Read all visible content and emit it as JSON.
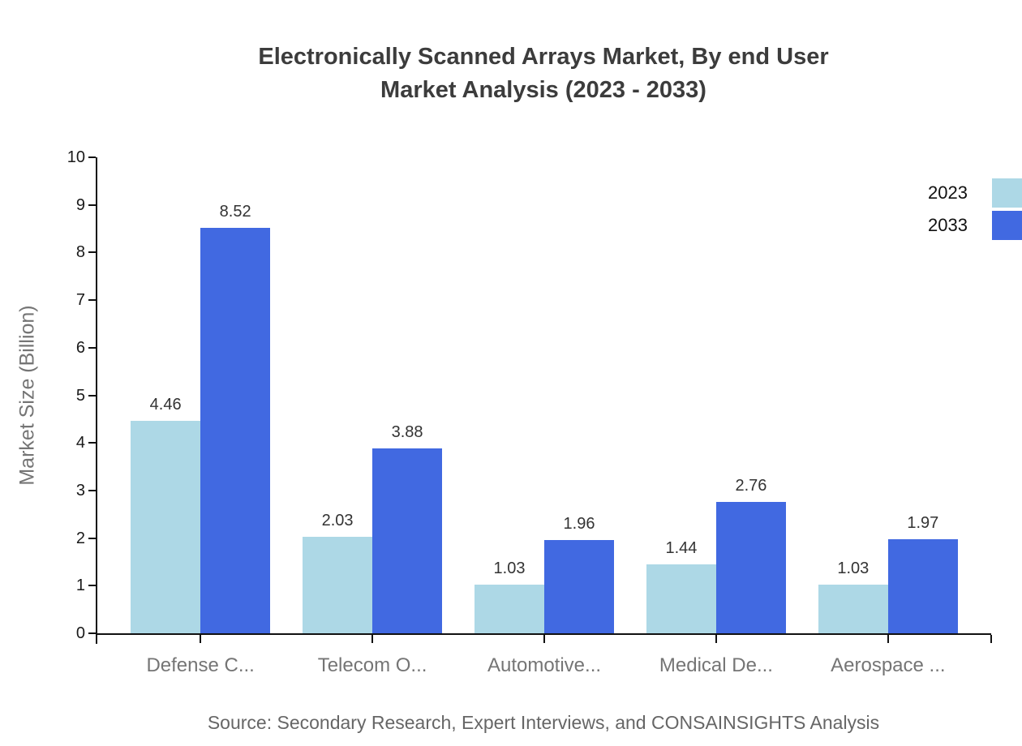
{
  "title": "Electronically Scanned Arrays Market, By end User\nMarket Analysis (2023 - 2033)",
  "source": "Source: Secondary Research, Expert Interviews, and CONSAINSIGHTS Analysis",
  "chart_data": {
    "type": "bar",
    "title": "Electronically Scanned Arrays Market, By end User Market Analysis (2023 - 2033)",
    "categories": [
      "Defense C...",
      "Telecom O...",
      "Automotive...",
      "Medical De...",
      "Aerospace ..."
    ],
    "series": [
      {
        "name": "2023",
        "color": "#ADD8E6",
        "values": [
          4.46,
          2.03,
          1.03,
          1.44,
          1.03
        ]
      },
      {
        "name": "2033",
        "color": "#4169E1",
        "values": [
          8.52,
          3.88,
          1.96,
          2.76,
          1.97
        ]
      }
    ],
    "xlabel": "",
    "ylabel": "Market Size (Billion)",
    "ylim": [
      0,
      10
    ],
    "yticks": [
      0,
      1,
      2,
      3,
      4,
      5,
      6,
      7,
      8,
      9,
      10
    ],
    "value_labels": true,
    "grid": false,
    "legend_position": "top-right",
    "axis_color": "#111111",
    "label_color": "#333333",
    "category_color": "#757575"
  }
}
